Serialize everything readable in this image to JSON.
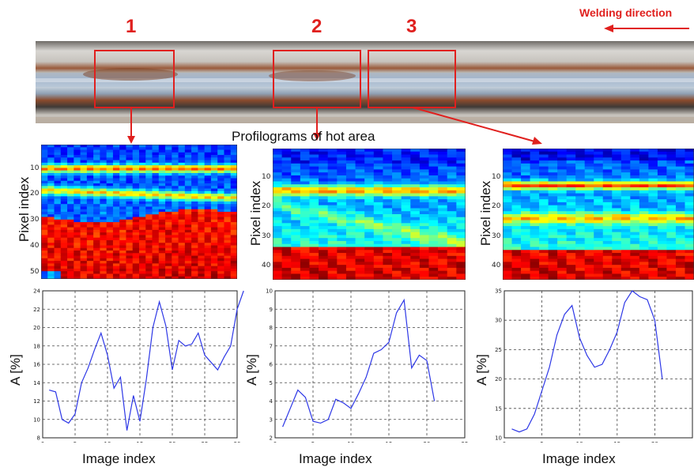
{
  "figure": {
    "weld_labels": [
      "1",
      "2",
      "3"
    ],
    "welding_direction": "Welding direction",
    "profilograms_title": "Profilograms of hot area",
    "pixel_axis_label": "Pixel index",
    "amplitude_axis_label": "A [%]",
    "image_axis_label": "Image index",
    "colors": {
      "annotation": "#e0201e",
      "line": "#2d37e6"
    }
  },
  "heatmaps": [
    {
      "yticks": [
        "10",
        "20",
        "30",
        "40",
        "50"
      ]
    },
    {
      "yticks": [
        "10",
        "20",
        "30",
        "40"
      ]
    },
    {
      "yticks": [
        "10",
        "20",
        "30",
        "40"
      ]
    }
  ],
  "chart_data": [
    {
      "type": "line",
      "title": "",
      "xlabel": "Image index",
      "ylabel": "A [%]",
      "xlim": [
        0,
        30
      ],
      "ylim": [
        8,
        24
      ],
      "xticks": [
        0,
        5,
        10,
        15,
        20,
        25,
        30
      ],
      "yticks": [
        8,
        10,
        12,
        14,
        16,
        18,
        20,
        22,
        24
      ],
      "grid": true,
      "series": [
        {
          "x": [
            1,
            2,
            3,
            4,
            5,
            6,
            7,
            8,
            9,
            10,
            11,
            12,
            13,
            14,
            15,
            16,
            17,
            18,
            19,
            20,
            21,
            22,
            23,
            24,
            25,
            26,
            27,
            28,
            29,
            30,
            31
          ],
          "y": [
            13.2,
            13.0,
            10.0,
            9.6,
            10.6,
            14.0,
            15.6,
            17.6,
            19.4,
            17.0,
            13.4,
            14.6,
            8.8,
            12.6,
            9.8,
            14.4,
            20.0,
            22.8,
            20.2,
            15.4,
            18.6,
            18.0,
            18.2,
            19.4,
            17.0,
            16.2,
            15.4,
            16.8,
            18.0,
            22.0,
            24.0
          ]
        }
      ]
    },
    {
      "type": "line",
      "title": "",
      "xlabel": "Image index",
      "ylabel": "A [%]",
      "xlim": [
        0,
        25
      ],
      "ylim": [
        2,
        10
      ],
      "xticks": [
        0,
        5,
        10,
        15,
        20,
        25
      ],
      "yticks": [
        2,
        3,
        4,
        5,
        6,
        7,
        8,
        9,
        10
      ],
      "grid": true,
      "series": [
        {
          "x": [
            1,
            2,
            3,
            4,
            5,
            6,
            7,
            8,
            9,
            10,
            11,
            12,
            13,
            14,
            15,
            16,
            17,
            18,
            19,
            20,
            21
          ],
          "y": [
            2.6,
            3.6,
            4.6,
            4.2,
            2.9,
            2.8,
            3.0,
            4.1,
            3.9,
            3.6,
            4.4,
            5.3,
            6.6,
            6.8,
            7.2,
            8.8,
            9.5,
            5.8,
            6.5,
            6.2,
            4.0
          ]
        }
      ]
    },
    {
      "type": "line",
      "title": "",
      "xlabel": "Image index",
      "ylabel": "A [%]",
      "xlim": [
        0,
        25
      ],
      "ylim": [
        10,
        35
      ],
      "xticks": [
        0,
        5,
        10,
        15,
        20
      ],
      "yticks": [
        10,
        15,
        20,
        25,
        30,
        35
      ],
      "grid": true,
      "series": [
        {
          "x": [
            1,
            2,
            3,
            4,
            5,
            6,
            7,
            8,
            9,
            10,
            11,
            12,
            13,
            14,
            15,
            16,
            17,
            18,
            19,
            20,
            21
          ],
          "y": [
            11.5,
            11.0,
            11.5,
            14.0,
            18.0,
            22.0,
            27.5,
            31.0,
            32.5,
            27.0,
            24.0,
            22.0,
            22.5,
            25.0,
            28.0,
            33.0,
            35.0,
            34.0,
            33.5,
            30.0,
            20.0
          ]
        }
      ]
    }
  ]
}
